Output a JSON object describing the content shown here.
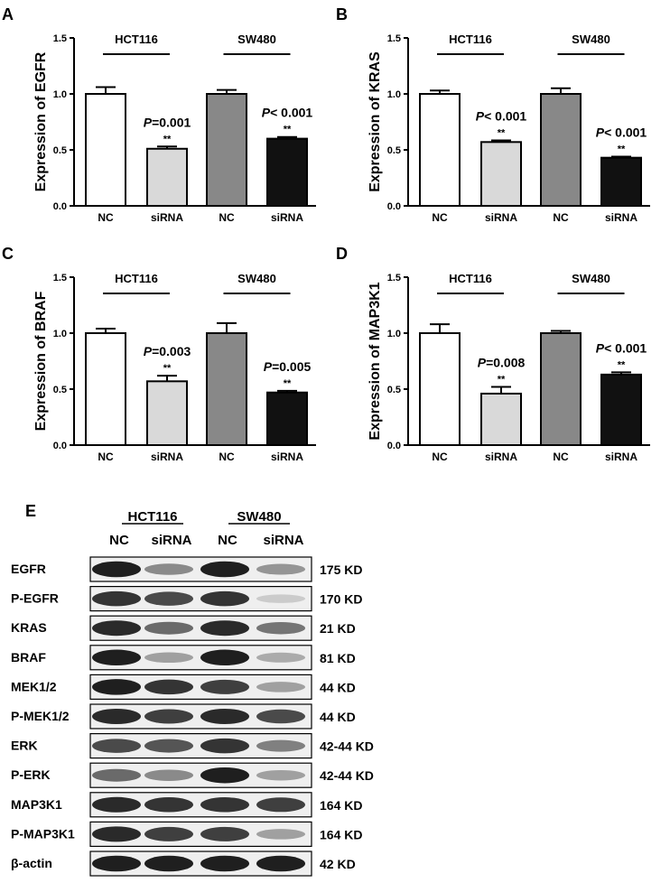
{
  "chart_data": [
    {
      "type": "bar",
      "panel": "A",
      "ylabel": "Expression of EGFR",
      "ylim": [
        0,
        1.5
      ],
      "yticks": [
        "0.0",
        "0.5",
        "1.0",
        "1.5"
      ],
      "categories": [
        "NC",
        "siRNA",
        "NC",
        "siRNA"
      ],
      "groups": [
        "HCT116",
        "SW480"
      ],
      "values": [
        1.0,
        0.51,
        1.0,
        0.6
      ],
      "errors": [
        0.06,
        0.02,
        0.035,
        0.015
      ],
      "colors": [
        "#ffffff",
        "#d9d9d9",
        "#888888",
        "#111111"
      ],
      "annotations": [
        {
          "bar": 1,
          "p": "P",
          "text": "=0.001",
          "stars": "**"
        },
        {
          "bar": 3,
          "p": "P",
          "text": "< 0.001",
          "stars": "**"
        }
      ]
    },
    {
      "type": "bar",
      "panel": "B",
      "ylabel": "Expression of KRAS",
      "ylim": [
        0,
        1.5
      ],
      "yticks": [
        "0.0",
        "0.5",
        "1.0",
        "1.5"
      ],
      "categories": [
        "NC",
        "siRNA",
        "NC",
        "siRNA"
      ],
      "groups": [
        "HCT116",
        "SW480"
      ],
      "values": [
        1.0,
        0.57,
        1.0,
        0.43
      ],
      "errors": [
        0.03,
        0.015,
        0.05,
        0.01
      ],
      "colors": [
        "#ffffff",
        "#d9d9d9",
        "#888888",
        "#111111"
      ],
      "annotations": [
        {
          "bar": 1,
          "p": "P",
          "text": "< 0.001",
          "stars": "**"
        },
        {
          "bar": 3,
          "p": "P",
          "text": "< 0.001",
          "stars": "**"
        }
      ]
    },
    {
      "type": "bar",
      "panel": "C",
      "ylabel": "Expression of BRAF",
      "ylim": [
        0,
        1.5
      ],
      "yticks": [
        "0.0",
        "0.5",
        "1.0",
        "1.5"
      ],
      "categories": [
        "NC",
        "siRNA",
        "NC",
        "siRNA"
      ],
      "groups": [
        "HCT116",
        "SW480"
      ],
      "values": [
        1.0,
        0.57,
        1.0,
        0.47
      ],
      "errors": [
        0.04,
        0.05,
        0.09,
        0.015
      ],
      "colors": [
        "#ffffff",
        "#d9d9d9",
        "#888888",
        "#111111"
      ],
      "annotations": [
        {
          "bar": 1,
          "p": "P",
          "text": "=0.003",
          "stars": "**"
        },
        {
          "bar": 3,
          "p": "P",
          "text": "=0.005",
          "stars": "**"
        }
      ]
    },
    {
      "type": "bar",
      "panel": "D",
      "ylabel": "Expression of MAP3K1",
      "ylim": [
        0,
        1.5
      ],
      "yticks": [
        "0.0",
        "0.5",
        "1.0",
        "1.5"
      ],
      "categories": [
        "NC",
        "siRNA",
        "NC",
        "siRNA"
      ],
      "groups": [
        "HCT116",
        "SW480"
      ],
      "values": [
        1.0,
        0.46,
        1.0,
        0.63
      ],
      "errors": [
        0.08,
        0.06,
        0.02,
        0.02
      ],
      "colors": [
        "#ffffff",
        "#d9d9d9",
        "#888888",
        "#111111"
      ],
      "annotations": [
        {
          "bar": 1,
          "p": "P",
          "text": "=0.008",
          "stars": "**"
        },
        {
          "bar": 3,
          "p": "P",
          "text": "< 0.001",
          "stars": "**"
        }
      ]
    }
  ],
  "blot": {
    "panel": "E",
    "groups": [
      "HCT116",
      "SW480"
    ],
    "lanes": [
      "NC",
      "siRNA",
      "NC",
      "siRNA"
    ],
    "rows": [
      {
        "name": "EGFR",
        "size": "175 KD",
        "intensity": [
          0.95,
          0.45,
          0.95,
          0.4
        ]
      },
      {
        "name": "P-EGFR",
        "size": "170 KD",
        "intensity": [
          0.85,
          0.75,
          0.85,
          0.15
        ]
      },
      {
        "name": "KRAS",
        "size": "21 KD",
        "intensity": [
          0.9,
          0.6,
          0.9,
          0.55
        ]
      },
      {
        "name": "BRAF",
        "size": "81 KD",
        "intensity": [
          0.95,
          0.35,
          0.95,
          0.3
        ]
      },
      {
        "name": "MEK1/2",
        "size": "44 KD",
        "intensity": [
          0.95,
          0.85,
          0.8,
          0.35
        ]
      },
      {
        "name": "P-MEK1/2",
        "size": "44 KD",
        "intensity": [
          0.9,
          0.8,
          0.9,
          0.75
        ]
      },
      {
        "name": "ERK",
        "size": "42-44 KD",
        "intensity": [
          0.75,
          0.7,
          0.85,
          0.5
        ]
      },
      {
        "name": "P-ERK",
        "size": "42-44 KD",
        "intensity": [
          0.6,
          0.45,
          0.95,
          0.35
        ]
      },
      {
        "name": "MAP3K1",
        "size": "164 KD",
        "intensity": [
          0.9,
          0.85,
          0.85,
          0.8
        ]
      },
      {
        "name": "P-MAP3K1",
        "size": "164 KD",
        "intensity": [
          0.9,
          0.8,
          0.8,
          0.35
        ]
      },
      {
        "name": "β-actin",
        "size": "42 KD",
        "intensity": [
          0.95,
          0.95,
          0.95,
          0.95
        ]
      }
    ]
  }
}
